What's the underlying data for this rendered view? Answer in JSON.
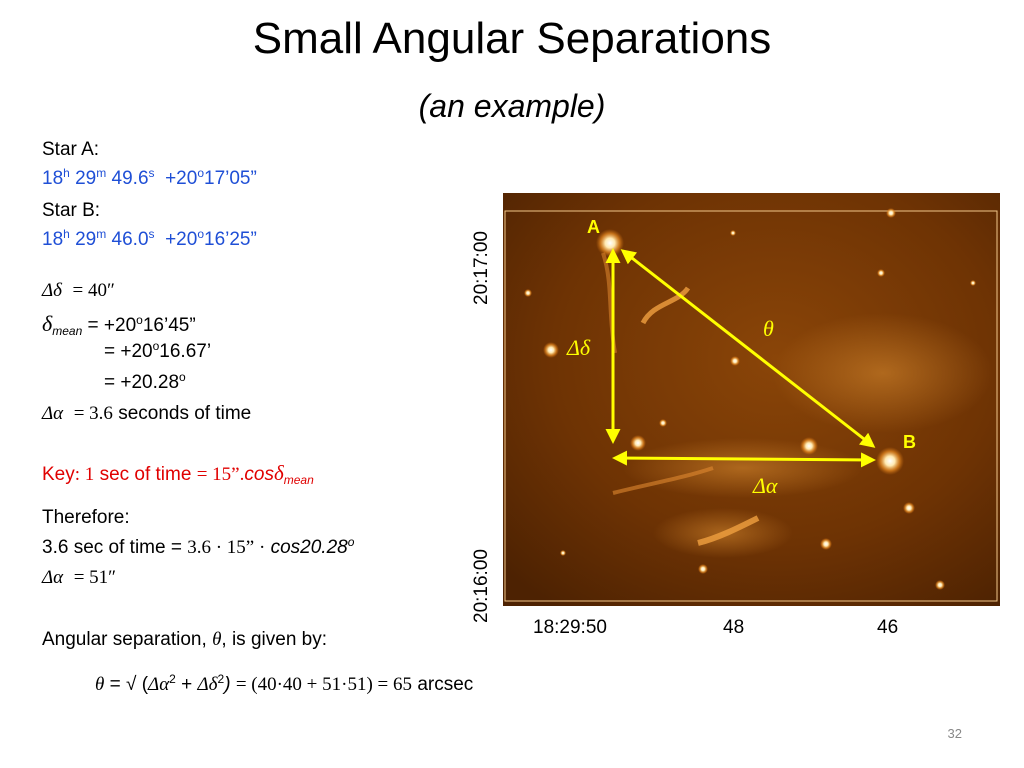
{
  "slide": {
    "title": "Small Angular Separations",
    "subtitle": "(an example)",
    "page_number": "32"
  },
  "star_a": {
    "label": "Star A:",
    "ra_h": "18",
    "ra_m": "29",
    "ra_s": "49.6",
    "dec_deg": "+20",
    "dec_rest": "17’05”"
  },
  "star_b": {
    "label": "Star B:",
    "ra_h": "18",
    "ra_m": "29",
    "ra_s": "46.0",
    "dec_deg": "+20",
    "dec_rest": "16’25”"
  },
  "calc": {
    "ddelta_sym": "Δδ",
    "ddelta_val": "= 40",
    "delta_mean_sym": "δ",
    "delta_mean_sub": "mean",
    "delta_mean_eq1a": " = +20",
    "delta_mean_eq1b": "16’45”",
    "eq2a": "= +20",
    "eq2b": "16.67’",
    "eq3a": "= +20.28",
    "dalpha_sym": "Δα",
    "dalpha_val": "= 3.6",
    "dalpha_unit": "seconds of time"
  },
  "key": {
    "prefix": "Key",
    "colon_one": ": 1",
    "text": "sec of time",
    "eq": "= 15”.",
    "cos": "cos",
    "delta": "δ",
    "sub": "mean"
  },
  "therefore": {
    "label": "Therefore:",
    "line1a": "3.6 sec of time =",
    "line1b": "3.6 · 15” ·",
    "line1c": "cos20.28",
    "dalpha_sym": "Δα",
    "dalpha_val": "= 51"
  },
  "separation": {
    "text_a": "Angular separation,",
    "theta": "θ",
    "text_b": ", is given by:",
    "f_theta": "θ",
    "f_eq": "= √ (",
    "f_da": "Δα",
    "f_plus": "+",
    "f_dd": "Δδ",
    "f_close": ")",
    "f_rest": "= (40·40 + 51·51) = 65",
    "f_unit": "arcsec"
  },
  "image": {
    "label_a": "A",
    "label_b": "B",
    "label_theta": "θ",
    "label_ddelta": "Δδ",
    "label_dalpha": "Δα",
    "y_tick_top": "20:17:00",
    "y_tick_bottom": "20:16:00",
    "x_tick_1": "18:29:50",
    "x_tick_2": "48",
    "x_tick_3": "46",
    "accent": "#ffff00",
    "background": "#7a3a05"
  }
}
